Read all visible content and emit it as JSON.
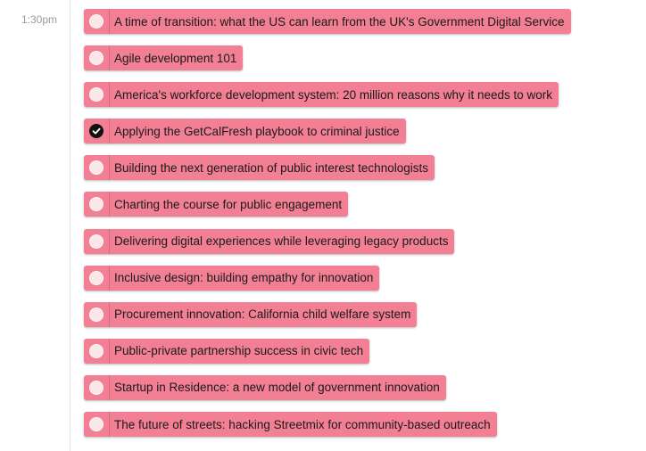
{
  "schedule": {
    "time": "1:30pm",
    "sessions": [
      {
        "title": "A time of transition: what the US can learn from the UK's Government Digital Service",
        "selected": false
      },
      {
        "title": "Agile development 101",
        "selected": false
      },
      {
        "title": "America's workforce development system: 20 million reasons why it needs to work",
        "selected": false
      },
      {
        "title": "Applying the GetCalFresh playbook to criminal justice",
        "selected": true
      },
      {
        "title": "Building the next generation of public interest technologists",
        "selected": false
      },
      {
        "title": "Charting the course for public engagement",
        "selected": false
      },
      {
        "title": "Delivering digital experiences while leveraging legacy products",
        "selected": false
      },
      {
        "title": "Inclusive design: building empathy for innovation",
        "selected": false
      },
      {
        "title": "Procurement innovation: California child welfare system",
        "selected": false
      },
      {
        "title": "Public-private partnership success in civic tech",
        "selected": false
      },
      {
        "title": "Startup in Residence: a new model of government innovation",
        "selected": false
      },
      {
        "title": "The future of streets: hacking Streetmix for community-based outreach",
        "selected": false
      }
    ]
  },
  "colors": {
    "session_bg": "#f27f93",
    "checked": "#111111",
    "unchecked": "#fbe6ea"
  },
  "icons": {
    "unchecked": "radio-unchecked-icon",
    "checked": "check-circle-icon"
  }
}
